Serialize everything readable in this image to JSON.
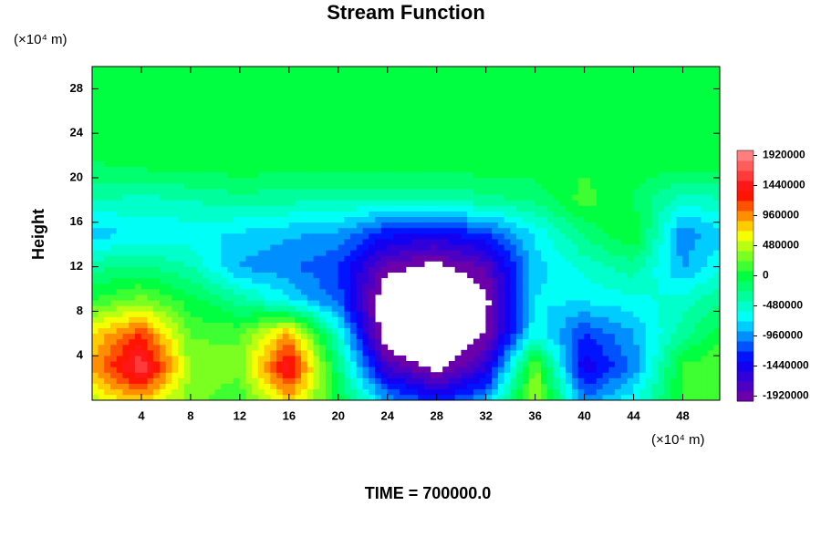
{
  "chart_data": {
    "type": "contour",
    "title": "Stream Function",
    "ylabel": "Height",
    "y_unit": "(×10⁴ m)",
    "x_unit": "(×10⁴ m)",
    "annotation": "TIME = 700000.0",
    "xlim": [
      0,
      51
    ],
    "ylim": [
      0,
      30
    ],
    "xticks": [
      4,
      8,
      12,
      16,
      20,
      24,
      28,
      32,
      36,
      40,
      44,
      48
    ],
    "yticks": [
      4,
      8,
      12,
      16,
      20,
      24,
      28
    ],
    "clim": [
      -2000000,
      2000000
    ],
    "level_step": 160000,
    "cticks": [
      1920000,
      1440000,
      960000,
      480000,
      0,
      -480000,
      -960000,
      -1440000,
      -1920000
    ],
    "colormap": [
      "#7a00a0",
      "#0000ff",
      "#00ffff",
      "#00ff40",
      "#ffff00",
      "#ff0000",
      "#ff9090"
    ],
    "x": [
      0,
      4,
      8,
      12,
      16,
      20,
      24,
      28,
      32,
      36,
      40,
      44,
      48,
      52
    ],
    "y": [
      0,
      3,
      6,
      9,
      12,
      15,
      18,
      21,
      24,
      27,
      30
    ],
    "z": [
      [
        500000,
        800000,
        300000,
        100000,
        800000,
        0,
        -900000,
        -1300000,
        -900000,
        500000,
        -1000000,
        -600000,
        100000,
        200000
      ],
      [
        900000,
        1700000,
        400000,
        300000,
        1500000,
        -200000,
        -1700000,
        -2100000,
        -1600000,
        300000,
        -1500000,
        -1000000,
        100000,
        300000
      ],
      [
        700000,
        1200000,
        200000,
        200000,
        900000,
        -500000,
        -2300000,
        -2500000,
        -2000000,
        -600000,
        -1200000,
        -900000,
        -300000,
        100000
      ],
      [
        100000,
        300000,
        0,
        -300000,
        -700000,
        -1100000,
        -2300000,
        -2500000,
        -2100000,
        -700000,
        -700000,
        -600000,
        -500000,
        -200000
      ],
      [
        -300000,
        -200000,
        -400000,
        -900000,
        -1000000,
        -1200000,
        -1900000,
        -2100000,
        -1800000,
        -800000,
        -500000,
        -300000,
        -900000,
        -500000
      ],
      [
        -800000,
        -700000,
        -650000,
        -750000,
        -850000,
        -900000,
        -1300000,
        -1400000,
        -1200000,
        -700000,
        -200000,
        100000,
        -1000000,
        -700000
      ],
      [
        -400000,
        -450000,
        -400000,
        -300000,
        -350000,
        -400000,
        -400000,
        -400000,
        -300000,
        -200000,
        150000,
        -100000,
        -500000,
        -400000
      ],
      [
        -100000,
        -50000,
        0,
        0,
        0,
        0,
        0,
        0,
        0,
        0,
        50000,
        0,
        0,
        0
      ],
      [
        0,
        0,
        0,
        0,
        0,
        0,
        0,
        0,
        0,
        0,
        0,
        0,
        0,
        0
      ],
      [
        0,
        0,
        0,
        0,
        0,
        0,
        0,
        0,
        0,
        0,
        0,
        0,
        0,
        0
      ],
      [
        0,
        0,
        0,
        0,
        0,
        0,
        0,
        0,
        0,
        0,
        0,
        0,
        0,
        0
      ]
    ]
  }
}
